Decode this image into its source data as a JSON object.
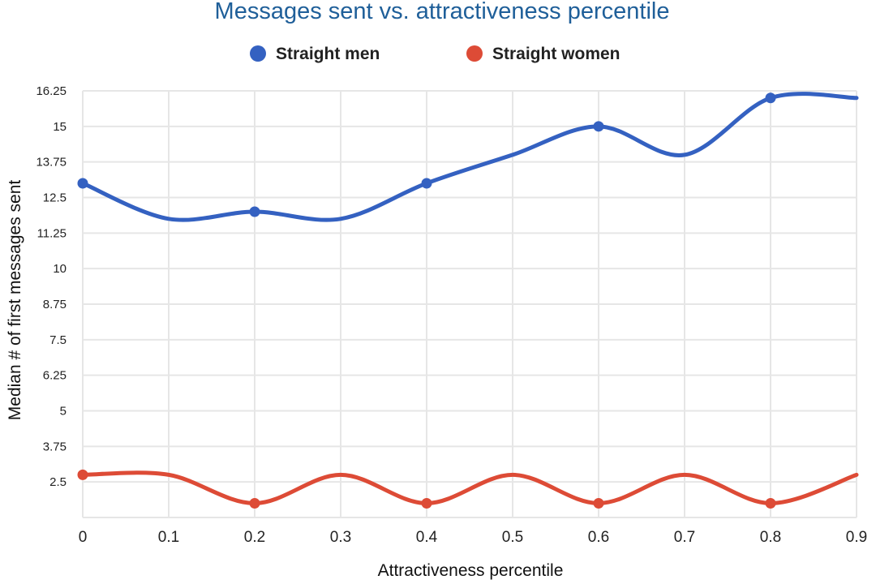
{
  "chart_data": {
    "type": "line",
    "title": "Messages sent vs. attractiveness percentile",
    "xlabel": "Attractiveness percentile",
    "ylabel": "Median # of first messages sent",
    "x_ticks": [
      "0",
      "0.1",
      "0.2",
      "0.3",
      "0.4",
      "0.5",
      "0.6",
      "0.7",
      "0.8",
      "0.9"
    ],
    "y_ticks": [
      "2.5",
      "3.75",
      "5",
      "6.25",
      "7.5",
      "8.75",
      "10",
      "11.25",
      "12.5",
      "13.75",
      "15",
      "16.25"
    ],
    "xlim": [
      0,
      0.9
    ],
    "ylim": [
      1.25,
      16.25
    ],
    "grid": true,
    "legend_position": "top",
    "series": [
      {
        "name": "Straight men",
        "color": "#3461c1",
        "marker_x": [
          0,
          0.2,
          0.4,
          0.6,
          0.8
        ],
        "marker_y": [
          13,
          12,
          13,
          15,
          16
        ],
        "x": [
          0,
          0.1,
          0.2,
          0.3,
          0.4,
          0.5,
          0.6,
          0.7,
          0.8,
          0.9
        ],
        "y": [
          13,
          11.75,
          12,
          11.75,
          13,
          14,
          15,
          14,
          16,
          16
        ]
      },
      {
        "name": "Straight women",
        "color": "#dd4b36",
        "marker_x": [
          0,
          0.2,
          0.4,
          0.6,
          0.8
        ],
        "marker_y": [
          2.75,
          1.75,
          1.75,
          1.75,
          1.75
        ],
        "x": [
          0,
          0.1,
          0.2,
          0.3,
          0.4,
          0.5,
          0.6,
          0.7,
          0.8,
          0.9
        ],
        "y": [
          2.75,
          2.75,
          1.75,
          2.75,
          1.75,
          2.75,
          1.75,
          2.75,
          1.75,
          2.75
        ]
      }
    ]
  }
}
